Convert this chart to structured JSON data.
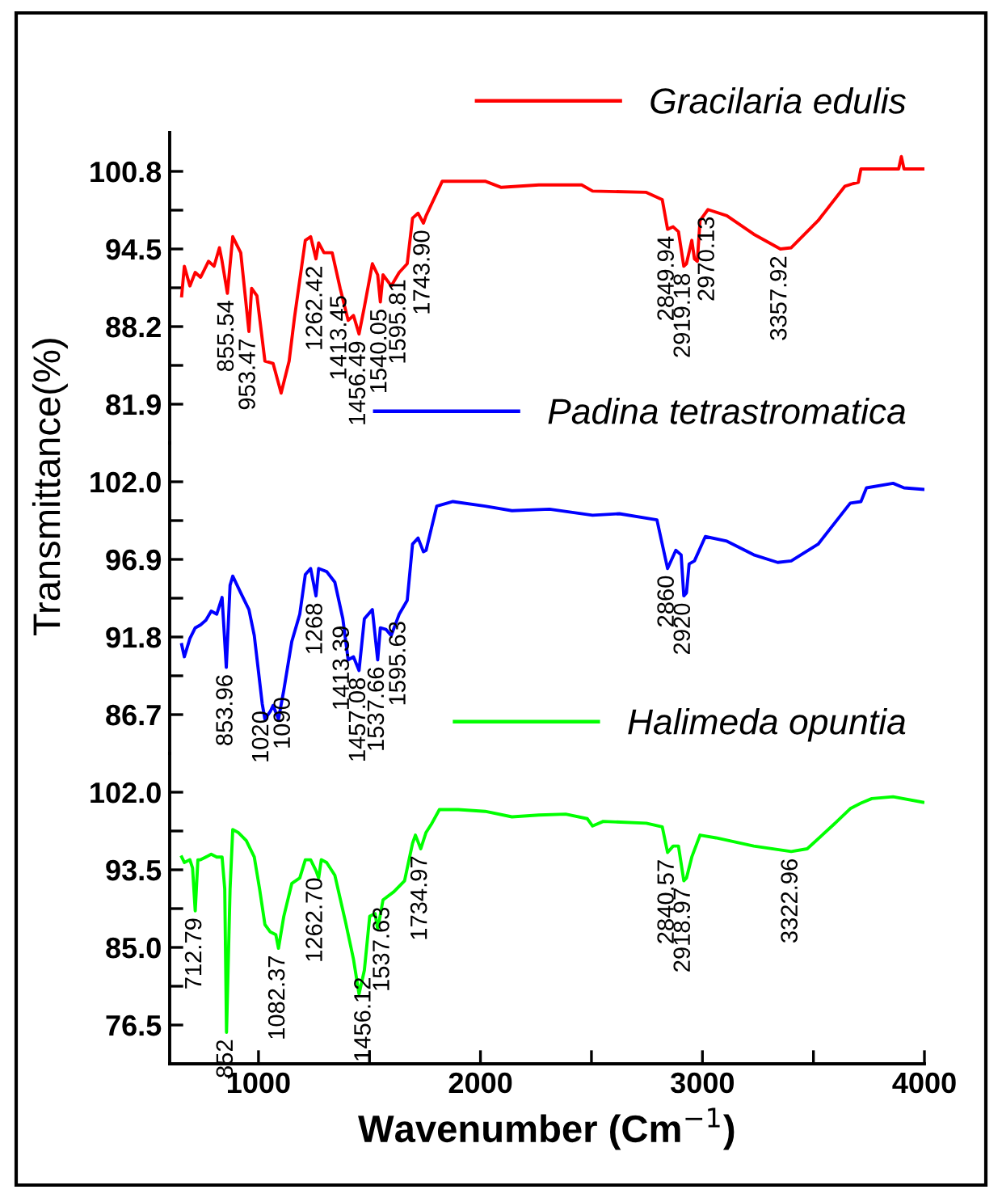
{
  "chart_data": [
    {
      "type": "line",
      "xlim": [
        600,
        4000
      ],
      "ylim": [
        78.75,
        103.95
      ],
      "yticks": [
        100.8,
        {
          "value": 97.65,
          "label": null
        },
        94.5,
        {
          "value": 91.35,
          "label": null
        },
        88.2,
        {
          "value": 85.05,
          "label": null
        },
        81.9
      ],
      "tick_labels": "y",
      "legend": "top right",
      "series": [
        {
          "name": "Gracilaria edulis",
          "color": "#ff0000",
          "x": [
            654,
            666,
            691,
            715,
            739,
            775,
            800,
            824,
            836,
            860,
            884,
            920,
            957,
            969,
            993,
            1029,
            1066,
            1102,
            1138,
            1162,
            1211,
            1235,
            1259,
            1271,
            1295,
            1332,
            1368,
            1404,
            1428,
            1453,
            1477,
            1513,
            1537,
            1549,
            1561,
            1598,
            1634,
            1670,
            1694,
            1719,
            1743,
            1755,
            1828,
            2021,
            2094,
            2263,
            2456,
            2505,
            2747,
            2819,
            2843,
            2868,
            2892,
            2916,
            2928,
            2952,
            2964,
            2977,
            2989,
            3025,
            3110,
            3231,
            3351,
            3400,
            3521,
            3642,
            3678,
            3702,
            3714,
            3884,
            3896,
            3908,
            3993
          ],
          "values": [
            90.7,
            93.1,
            91.5,
            92.6,
            92.2,
            93.5,
            93.1,
            94.6,
            93.5,
            90.9,
            95.5,
            94.2,
            87.8,
            91.3,
            90.7,
            85.4,
            85.2,
            82.8,
            85.4,
            88.9,
            95.2,
            95.5,
            93.7,
            95.0,
            94.2,
            94.2,
            91.3,
            88.7,
            89.1,
            87.6,
            89.8,
            93.3,
            92.4,
            90.2,
            92.4,
            91.5,
            92.6,
            93.3,
            97.0,
            97.4,
            96.6,
            97.2,
            100.0,
            100.0,
            99.5,
            99.7,
            99.7,
            99.2,
            99.1,
            98.5,
            96.1,
            96.3,
            95.9,
            93.1,
            93.3,
            95.2,
            93.7,
            93.5,
            96.8,
            97.7,
            97.2,
            95.7,
            94.5,
            94.6,
            96.8,
            99.6,
            99.8,
            99.9,
            101.0,
            101.0,
            102.0,
            101.0,
            101.0
          ]
        }
      ],
      "annotations": [
        {
          "text": "855.54",
          "x": 860,
          "y": 90.9
        },
        {
          "text": "953.47",
          "x": 957,
          "y": 87.8
        },
        {
          "text": "1262.42",
          "x": 1259,
          "y": 93.7
        },
        {
          "text": "1413.45",
          "x": 1368,
          "y": 91.3
        },
        {
          "text": "1456.49",
          "x": 1453,
          "y": 87.6
        },
        {
          "text": "1540.05",
          "x": 1549,
          "y": 90.2
        },
        {
          "text": "1595.81",
          "x": 1634,
          "y": 92.6
        },
        {
          "text": "1743.90",
          "x": 1743,
          "y": 96.6
        },
        {
          "text": "2849.94",
          "x": 2843,
          "y": 96.1
        },
        {
          "text": "2919.18",
          "x": 2916,
          "y": 93.1
        },
        {
          "text": "2970.13",
          "x": 3025,
          "y": 97.7
        },
        {
          "text": "3357.92",
          "x": 3351,
          "y": 94.5
        }
      ]
    },
    {
      "type": "line",
      "xlim": [
        600,
        4000
      ],
      "ylim": [
        84.15,
        104.55
      ],
      "yticks": [
        {
          "value": 102.0,
          "label": "102.0"
        },
        {
          "value": 99.45,
          "label": null
        },
        96.9,
        {
          "value": 94.35,
          "label": null
        },
        91.8,
        {
          "value": 89.25,
          "label": null
        },
        86.7
      ],
      "tick_labels": "y",
      "legend": "top right",
      "ylabel": "Transmittance(%)",
      "series": [
        {
          "name": "Padina tetrastromatica",
          "color": "#0000ff",
          "x": [
            654,
            666,
            691,
            715,
            739,
            763,
            787,
            812,
            836,
            855,
            872,
            884,
            920,
            957,
            981,
            1017,
            1029,
            1053,
            1066,
            1090,
            1114,
            1150,
            1186,
            1211,
            1235,
            1259,
            1271,
            1307,
            1344,
            1380,
            1404,
            1428,
            1453,
            1477,
            1513,
            1537,
            1549,
            1574,
            1598,
            1634,
            1670,
            1694,
            1719,
            1743,
            1755,
            1803,
            1876,
            2021,
            2142,
            2311,
            2505,
            2626,
            2795,
            2843,
            2880,
            2904,
            2916,
            2928,
            2940,
            2964,
            3013,
            3110,
            3231,
            3339,
            3400,
            3521,
            3666,
            3714,
            3739,
            3859,
            3908,
            3993
          ],
          "values": [
            91.3,
            90.5,
            91.7,
            92.4,
            92.6,
            92.9,
            93.5,
            93.3,
            94.4,
            89.8,
            95.2,
            95.8,
            94.7,
            93.6,
            91.9,
            87.4,
            86.4,
            86.9,
            87.3,
            86.4,
            88.3,
            91.5,
            93.3,
            95.9,
            96.3,
            94.5,
            96.3,
            96.1,
            95.4,
            93.0,
            90.3,
            90.5,
            89.6,
            93.0,
            93.6,
            90.3,
            92.4,
            92.3,
            91.9,
            93.3,
            94.2,
            97.9,
            98.3,
            97.4,
            97.5,
            100.4,
            100.7,
            100.4,
            100.1,
            100.2,
            99.8,
            99.9,
            99.5,
            96.3,
            97.5,
            97.2,
            94.5,
            94.7,
            96.6,
            96.8,
            98.4,
            98.1,
            97.2,
            96.7,
            96.8,
            97.9,
            100.6,
            100.7,
            101.6,
            101.9,
            101.6,
            101.5
          ]
        }
      ],
      "annotations": [
        {
          "text": "853.96",
          "x": 855,
          "y": 89.8
        },
        {
          "text": "1020",
          "x": 1017,
          "y": 87.4
        },
        {
          "text": "1090",
          "x": 1114,
          "y": 88.3
        },
        {
          "text": "1268",
          "x": 1259,
          "y": 94.5
        },
        {
          "text": "1413.39",
          "x": 1380,
          "y": 93.0
        },
        {
          "text": "1457.08",
          "x": 1453,
          "y": 89.6
        },
        {
          "text": "1537.66",
          "x": 1537,
          "y": 90.3
        },
        {
          "text": "1595.63",
          "x": 1634,
          "y": 93.3
        },
        {
          "text": "2860",
          "x": 2843,
          "y": 96.3
        },
        {
          "text": "2920",
          "x": 2916,
          "y": 94.5
        }
      ]
    },
    {
      "type": "line",
      "xlim": [
        600,
        4000
      ],
      "xticks": [
        1000,
        {
          "value": 1500,
          "label": null
        },
        2000,
        {
          "value": 2500,
          "label": null
        },
        3000,
        {
          "value": 3500,
          "label": null
        },
        4000
      ],
      "ylim": [
        72.25,
        106.25
      ],
      "yticks": [
        {
          "value": 102.0,
          "label": "102.0"
        },
        {
          "value": 97.75,
          "label": null
        },
        93.5,
        {
          "value": 89.25,
          "label": null
        },
        {
          "value": 85.0,
          "label": "85.0"
        },
        {
          "value": 80.75,
          "label": null
        },
        76.5
      ],
      "legend": "top right",
      "xlabel": "Wavenumber (Cm$^{−1}$)",
      "series": [
        {
          "name": "Halimeda opuntia",
          "color": "#00ff00",
          "x": [
            654,
            666,
            691,
            703,
            715,
            727,
            739,
            763,
            787,
            812,
            836,
            848,
            856,
            872,
            884,
            908,
            945,
            981,
            1005,
            1029,
            1053,
            1078,
            1090,
            1114,
            1150,
            1186,
            1211,
            1235,
            1259,
            1271,
            1283,
            1307,
            1344,
            1392,
            1428,
            1453,
            1477,
            1501,
            1525,
            1537,
            1561,
            1610,
            1658,
            1694,
            1707,
            1731,
            1755,
            1779,
            1815,
            1900,
            2021,
            2142,
            2263,
            2384,
            2481,
            2505,
            2553,
            2747,
            2819,
            2843,
            2868,
            2892,
            2916,
            2928,
            2952,
            2989,
            3061,
            3231,
            3400,
            3472,
            3593,
            3666,
            3714,
            3763,
            3859,
            3993
          ],
          "values": [
            94.9,
            94.3,
            94.6,
            93.7,
            89.0,
            94.6,
            94.6,
            94.9,
            95.2,
            94.9,
            94.9,
            91.4,
            75.7,
            91.4,
            97.9,
            97.6,
            96.7,
            94.9,
            91.4,
            87.5,
            86.7,
            86.4,
            84.9,
            88.4,
            92.0,
            92.6,
            94.6,
            94.6,
            93.4,
            92.6,
            94.6,
            94.3,
            92.9,
            87.8,
            83.7,
            79.9,
            82.5,
            88.4,
            88.7,
            87.0,
            90.2,
            91.1,
            92.3,
            96.4,
            97.3,
            95.8,
            97.6,
            98.5,
            100.1,
            100.1,
            99.9,
            99.3,
            99.5,
            99.6,
            99.1,
            98.3,
            98.8,
            98.6,
            98.2,
            95.4,
            96.1,
            96.1,
            92.3,
            92.6,
            94.9,
            97.3,
            97.0,
            96.1,
            95.5,
            95.8,
            98.5,
            100.2,
            100.8,
            101.3,
            101.5,
            100.9
          ]
        }
      ],
      "annotations": [
        {
          "text": "712.79",
          "x": 715,
          "y": 89.0
        },
        {
          "text": "852",
          "x": 856,
          "y": 75.7
        },
        {
          "text": "1082.37",
          "x": 1090,
          "y": 84.9
        },
        {
          "text": "1262.70",
          "x": 1259,
          "y": 93.4
        },
        {
          "text": "1456.12",
          "x": 1477,
          "y": 82.5
        },
        {
          "text": "1537.63",
          "x": 1561,
          "y": 90.2
        },
        {
          "text": "1734.97",
          "x": 1731,
          "y": 95.8
        },
        {
          "text": "2840.57",
          "x": 2843,
          "y": 95.4
        },
        {
          "text": "2918.97",
          "x": 2916,
          "y": 92.3
        },
        {
          "text": "3322.96",
          "x": 3400,
          "y": 95.5
        }
      ]
    }
  ]
}
